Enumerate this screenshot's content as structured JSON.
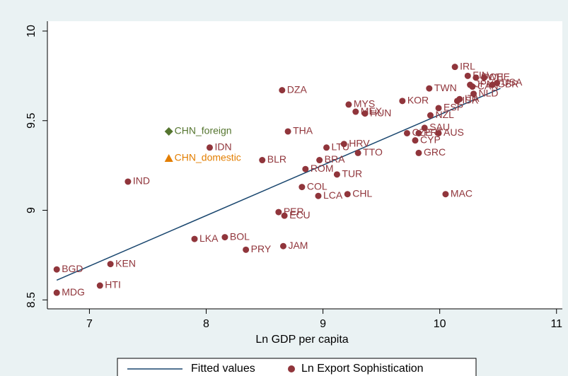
{
  "chart_data": {
    "type": "scatter",
    "xlabel": "Ln GDP per capita",
    "xlim": [
      6.64,
      11.05
    ],
    "ylim": [
      8.45,
      10.055
    ],
    "xticks": [
      7,
      8,
      9,
      10,
      11
    ],
    "yticks": [
      8.5,
      9,
      9.5,
      10
    ],
    "series": [
      {
        "name": "Fitted values",
        "kind": "line",
        "color": "#1a476f",
        "x": [
          6.72,
          10.52
        ],
        "values": [
          8.61,
          9.68
        ]
      },
      {
        "name": "Ln Export Sophistication",
        "kind": "points",
        "color": "#90353b",
        "point_labels": [
          "IRL",
          "FIN",
          "SWE",
          "CHE",
          "JPN",
          "CAN",
          "USA",
          "GBR",
          "NLD",
          "ITA",
          "ISR",
          "TWN",
          "KOR",
          "ESP",
          "NZL",
          "SAU",
          "CZE",
          "PRT",
          "CYP",
          "AUS",
          "GRC",
          "MAC",
          "MYS",
          "DZA",
          "HUN",
          "MEX",
          "THA",
          "LTU",
          "HRV",
          "TTO",
          "IDN",
          "BLR",
          "BRA",
          "ROM",
          "TUR",
          "IND",
          "COL",
          "LCA",
          "CHL",
          "PER",
          "ECU",
          "LKA",
          "BOL",
          "PRY",
          "JAM",
          "KEN",
          "BGD",
          "HTI",
          "MDG"
        ],
        "x": [
          10.13,
          10.24,
          10.31,
          10.38,
          10.26,
          10.28,
          10.49,
          10.45,
          10.29,
          10.17,
          10.15,
          9.91,
          9.68,
          9.99,
          9.92,
          9.87,
          9.72,
          9.82,
          9.79,
          9.99,
          9.82,
          10.05,
          9.22,
          8.65,
          9.36,
          9.28,
          8.7,
          9.03,
          9.18,
          9.3,
          8.03,
          8.48,
          8.97,
          8.85,
          9.12,
          7.33,
          8.82,
          8.96,
          9.21,
          8.62,
          8.67,
          7.9,
          8.16,
          8.34,
          8.66,
          7.18,
          6.72,
          7.09,
          6.72
        ],
        "values": [
          9.8,
          9.75,
          9.74,
          9.74,
          9.7,
          9.69,
          9.71,
          9.7,
          9.65,
          9.62,
          9.61,
          9.68,
          9.61,
          9.57,
          9.53,
          9.46,
          9.43,
          9.43,
          9.39,
          9.43,
          9.32,
          9.09,
          9.59,
          9.67,
          9.54,
          9.55,
          9.44,
          9.35,
          9.37,
          9.32,
          9.35,
          9.28,
          9.28,
          9.23,
          9.2,
          9.16,
          9.13,
          9.08,
          9.09,
          8.99,
          8.97,
          8.84,
          8.85,
          8.78,
          8.8,
          8.7,
          8.67,
          8.58,
          8.54
        ]
      }
    ],
    "highlights": [
      {
        "label": "CHN_foreign",
        "x": 7.68,
        "value": 9.44,
        "color": "#55752f",
        "marker": "diamond"
      },
      {
        "label": "CHN_domestic",
        "x": 7.68,
        "value": 9.29,
        "color": "#e37e00",
        "marker": "triangle"
      }
    ]
  }
}
